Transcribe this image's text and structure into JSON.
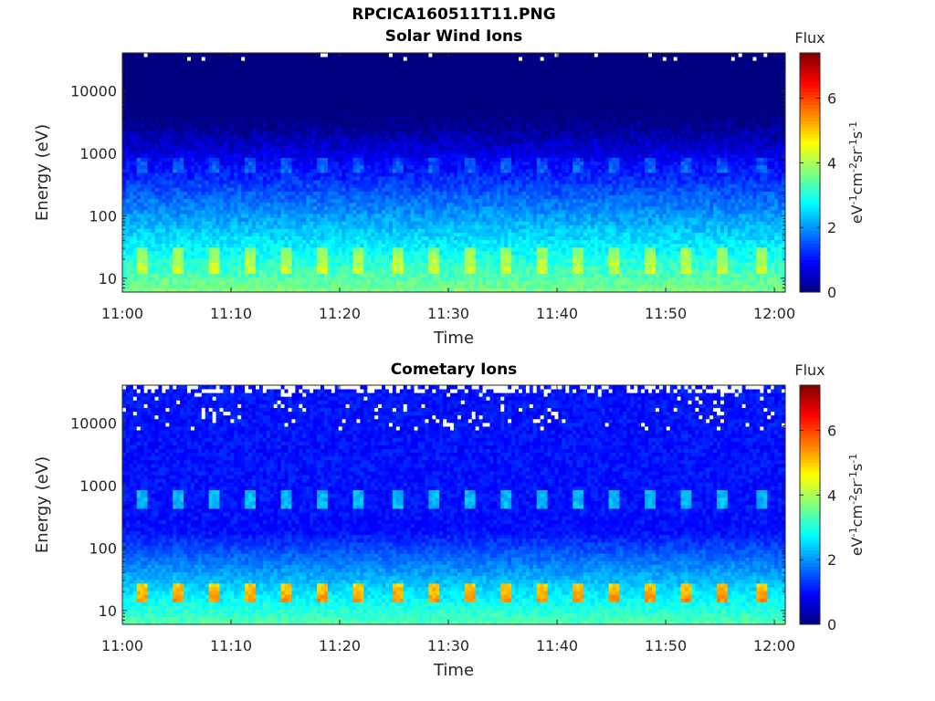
{
  "figure": {
    "title": "RPCICA160511T11.PNG"
  },
  "chart_data": [
    {
      "type": "heatmap",
      "title": "Solar Wind Ions",
      "xlabel": "Time",
      "ylabel": "Energy (eV)",
      "y_scale": "log",
      "ylim": [
        6,
        40000
      ],
      "xlim": [
        "11:00",
        "12:01"
      ],
      "x_ticks": [
        "11:00",
        "11:10",
        "11:20",
        "11:30",
        "11:40",
        "11:50",
        "12:00"
      ],
      "y_ticks": [
        "10",
        "100",
        "1000",
        "10000"
      ],
      "colorbar": {
        "label": "Flux",
        "unit": "eV<sup>-1</sup>cm<sup>-2</sup>sr<sup>-1</sup>s<sup>-1</sup>",
        "range": [
          0,
          7.4
        ],
        "ticks": [
          "0",
          "2",
          "4",
          "6"
        ],
        "colormap": "jet"
      },
      "grid": false
    },
    {
      "type": "heatmap",
      "title": "Cometary Ions",
      "xlabel": "Time",
      "ylabel": "Energy (eV)",
      "y_scale": "log",
      "ylim": [
        6,
        40000
      ],
      "xlim": [
        "11:00",
        "12:01"
      ],
      "x_ticks": [
        "11:00",
        "11:10",
        "11:20",
        "11:30",
        "11:40",
        "11:50",
        "12:00"
      ],
      "y_ticks": [
        "10",
        "100",
        "1000",
        "10000"
      ],
      "colorbar": {
        "label": "Flux",
        "unit": "eV<sup>-1</sup>cm<sup>-2</sup>sr<sup>-1</sup>s<sup>-1</sup>",
        "range": [
          0,
          7.4
        ],
        "ticks": [
          "0",
          "2",
          "4",
          "6"
        ],
        "colormap": "jet"
      },
      "grid": false
    }
  ]
}
